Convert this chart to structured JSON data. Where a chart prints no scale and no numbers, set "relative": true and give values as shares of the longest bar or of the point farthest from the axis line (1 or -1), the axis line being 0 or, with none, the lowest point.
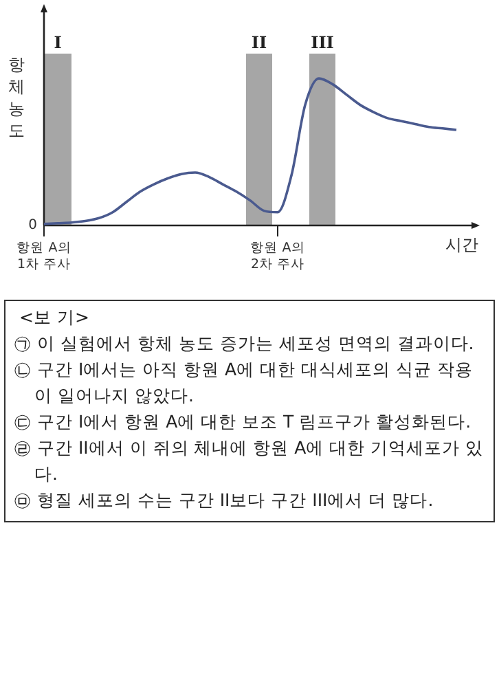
{
  "chart_data": {
    "type": "line",
    "relative": true,
    "xlabel": "시간",
    "ylabel": "항체 농도",
    "tick_labels": "x",
    "legend": false,
    "marker": "none",
    "categories": [
      "항원 A의 1차 주사",
      null,
      null,
      null,
      null,
      null,
      null,
      null,
      null,
      null,
      null,
      null,
      null,
      null,
      null,
      null,
      null,
      "항원 A의 2차 주사",
      null,
      null,
      null,
      null,
      null,
      null,
      null,
      null,
      null,
      null,
      null,
      null,
      null
    ],
    "series": [
      {
        "color": "#4a5a8f",
        "values": [
          0.01,
          0.015,
          0.02,
          0.03,
          0.05,
          0.09,
          0.16,
          0.23,
          0.28,
          0.32,
          0.35,
          0.36,
          0.33,
          0.28,
          0.23,
          0.17,
          0.1,
          0.09,
          0.34,
          0.82,
          1,
          0.96,
          0.89,
          0.82,
          0.77,
          0.73,
          0.71,
          0.69,
          0.67,
          0.66,
          0.65
        ]
      }
    ],
    "annotations": [
      "0",
      "I",
      "II",
      "III",
      "<보  기>",
      "㉠ 이 실험에서 항체 농도 증가는 세포성 면역의 결과이다.",
      "㉡ 구간 I에서는 아직 항원 A에 대한 대식세포의 식균 작용이 일어나지 않았다.",
      "㉢ 구간 I에서 항원 A에 대한 보조 T 림프구가 활성화된다.",
      "㉣ 구간 II에서 이 쥐의 체내에 항원 A에 대한 기억세포가 있다.",
      "㉤ 형질 세포의 수는 구간 II보다 구간 III에서 더 많다."
    ]
  }
}
